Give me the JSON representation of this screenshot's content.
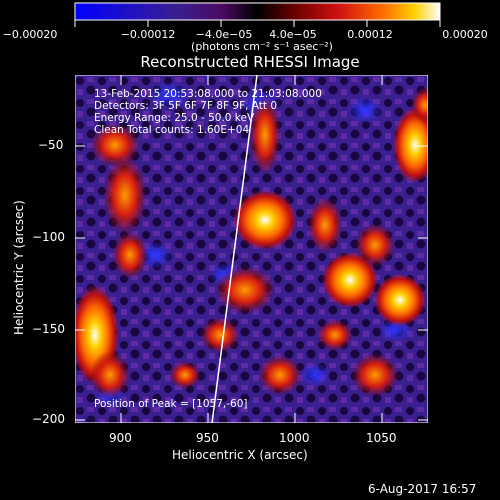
{
  "colorbar": {
    "tick_labels": [
      "−0.00020",
      "−0.00012",
      "−4.0e−05",
      "4.0e−05",
      "0.00012",
      "0.00020"
    ],
    "unit_label": "(photons cm⁻² s⁻¹ asec⁻²)"
  },
  "plot": {
    "title": "Reconstructed RHESSI Image",
    "annotations": [
      "13-Feb-2015 20:53:08.000 to 21:03:08.000",
      "Detectors: 3F 5F 6F 7F 8F 9F, Att 0",
      "Energy Range: 25.0 - 50.0 keV",
      "Clean     Total counts: 1.60E+04"
    ],
    "peak_label": "Position of Peak = [1057,-60]",
    "xlabel": "Heliocentric X (arcsec)",
    "ylabel": "Heliocentric Y (arcsec)",
    "xticks": [
      "900",
      "950",
      "1000",
      "1050"
    ],
    "yticks": [
      "−50",
      "−100",
      "−150",
      "−200"
    ]
  },
  "footer": {
    "date": "6-Aug-2017 16:57"
  },
  "colors": {
    "background": "#000000",
    "text": "#ffffff",
    "limb_line": "#ffffff",
    "colormap": [
      "#0000ff",
      "#3a1f8f",
      "#4b0a63",
      "#000000",
      "#6a0000",
      "#d01010",
      "#ff6a00",
      "#ffd000",
      "#ffffff"
    ]
  }
}
